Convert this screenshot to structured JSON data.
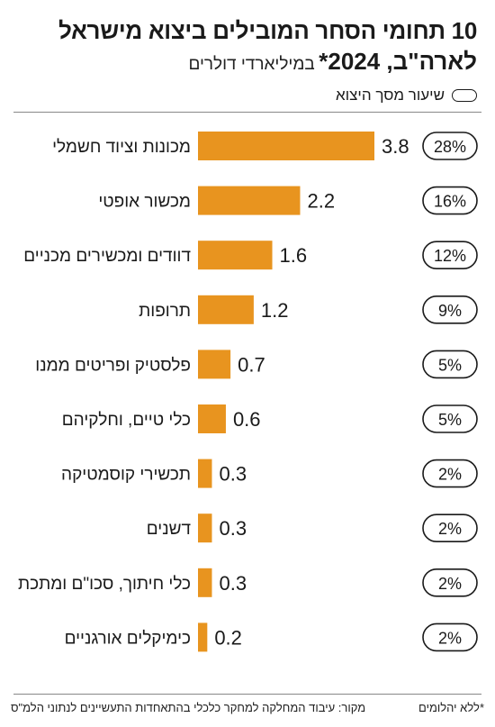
{
  "chart_data": {
    "type": "bar",
    "title": "10 תחומי הסחר המובילים ביצוא מישראל",
    "subtitle_bold": "לארה\"ב, 2024*",
    "subtitle_unit": "במיליארדי דולרים",
    "legend_label": "שיעור מסך היצוא",
    "bar_color": "#e8941f",
    "xlim": [
      0,
      3.8
    ],
    "categories": [
      "מכונות וציוד חשמלי",
      "מכשור אופטי",
      "דוודים ומכשירים מכניים",
      "תרופות",
      "פלסטיק ופריטים ממנו",
      "כלי טיים, וחלקיהם",
      "תכשירי קוסמטיקה",
      "דשנים",
      "כלי חיתוך, סכו\"ם ומתכת",
      "כימיקלים אורגניים"
    ],
    "values": [
      3.8,
      2.2,
      1.6,
      1.2,
      0.7,
      0.6,
      0.3,
      0.3,
      0.3,
      0.2
    ],
    "value_labels": [
      "3.8",
      "2.2",
      "1.6",
      "1.2",
      "0.7",
      "0.6",
      "0.3",
      "0.3",
      "0.3",
      "0.2"
    ],
    "shares": [
      "28%",
      "16%",
      "12%",
      "9%",
      "5%",
      "5%",
      "2%",
      "2%",
      "2%",
      "2%"
    ]
  },
  "footer": {
    "source": "מקור: עיבוד המחלקה למחקר כלכלי בהתאחדות התעשיינים לנתוני הלמ\"ס",
    "note": "*ללא יהלומים"
  }
}
